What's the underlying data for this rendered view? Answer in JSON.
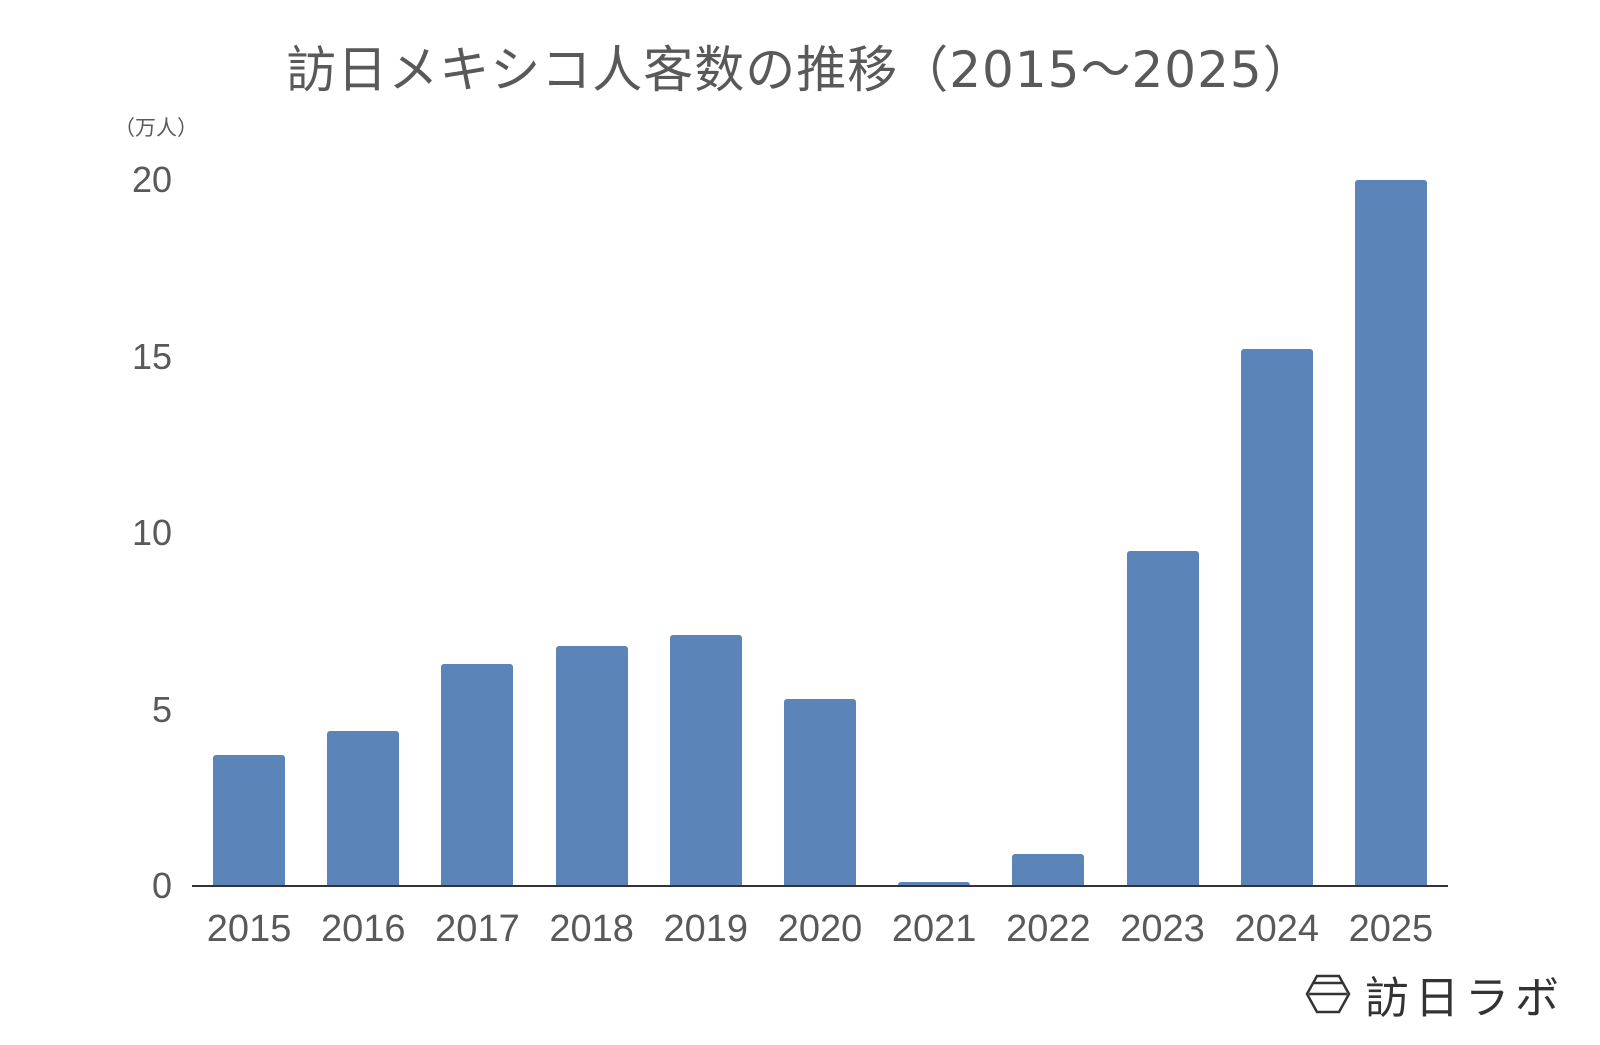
{
  "title": "訪日メキシコ人客数の推移（2015～2025）",
  "unit_label": "（万人）",
  "brand": {
    "icon": "hexagon-logo-icon",
    "name": "訪日ラボ"
  },
  "colors": {
    "bar": "#5b84b8",
    "axis": "#333333",
    "text": "#595959"
  },
  "chart_data": {
    "type": "bar",
    "title": "訪日メキシコ人客数の推移（2015～2025）",
    "xlabel": "",
    "ylabel": "（万人）",
    "categories": [
      "2015",
      "2016",
      "2017",
      "2018",
      "2019",
      "2020",
      "2021",
      "2022",
      "2023",
      "2024",
      "2025"
    ],
    "values": [
      3.7,
      4.4,
      6.3,
      6.8,
      7.1,
      5.3,
      0.1,
      0.9,
      9.5,
      15.2,
      20.0
    ],
    "ylim": [
      0,
      20
    ],
    "yticks": [
      "0",
      "5",
      "10",
      "15",
      "20"
    ],
    "grid": false,
    "legend": "none"
  }
}
